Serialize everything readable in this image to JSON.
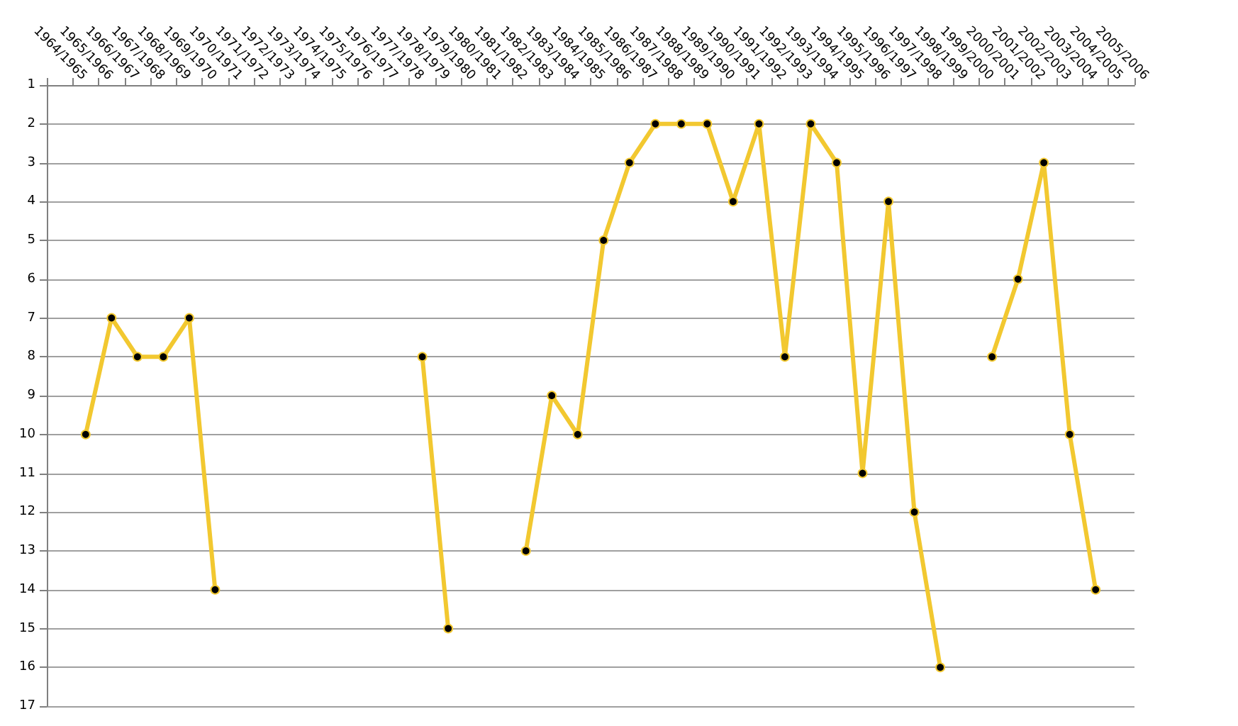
{
  "chart_data": {
    "type": "line",
    "categories": [
      "1964/1965",
      "1965/1966",
      "1966/1967",
      "1967/1968",
      "1968/1969",
      "1969/1970",
      "1970/1971",
      "1971/1972",
      "1972/1973",
      "1973/1974",
      "1974/1975",
      "1975/1976",
      "1976/1977",
      "1977/1978",
      "1978/1979",
      "1979/1980",
      "1980/1981",
      "1981/1982",
      "1982/1983",
      "1983/1984",
      "1984/1985",
      "1985/1986",
      "1986/1987",
      "1987/1988",
      "1988/1989",
      "1989/1990",
      "1990/1991",
      "1991/1992",
      "1992/1993",
      "1993/1994",
      "1994/1995",
      "1995/1996",
      "1996/1997",
      "1997/1998",
      "1998/1999",
      "1999/2000",
      "2000/2001",
      "2001/2002",
      "2002/2003",
      "2003/2004",
      "2004/2005",
      "2005/2006"
    ],
    "series": [
      {
        "color": "#f2c830",
        "values": [
          null,
          10,
          7,
          8,
          8,
          7,
          14,
          null,
          null,
          null,
          null,
          null,
          null,
          null,
          8,
          15,
          null,
          null,
          13,
          9,
          10,
          5,
          3,
          2,
          2,
          2,
          4,
          2,
          8,
          2,
          3,
          11,
          4,
          12,
          16,
          null,
          8,
          6,
          3,
          10,
          14,
          null
        ]
      }
    ],
    "ylim": [
      17,
      1
    ],
    "yticks": [
      1,
      2,
      3,
      4,
      5,
      6,
      7,
      8,
      9,
      10,
      11,
      12,
      13,
      14,
      15,
      16,
      17
    ],
    "grid": "y",
    "marker": "circle",
    "line_style": "solid"
  }
}
